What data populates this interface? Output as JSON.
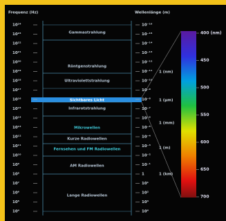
{
  "header": {
    "frequency_title": "Frequenz (Hz)",
    "wavelength_title": "Wellenlänge (m)"
  },
  "frequency_ticks": [
    "10²⁴",
    "10²³",
    "10²²",
    "10²¹",
    "10²⁰",
    "10¹⁹",
    "10¹⁸",
    "10¹⁷",
    "10¹⁶",
    "10¹⁵",
    "10¹⁴",
    "10¹³",
    "10¹²",
    "10¹¹",
    "10¹⁰",
    "10⁹",
    "10⁸",
    "10⁷",
    "10⁶",
    "10⁵",
    "10⁴"
  ],
  "wavelength_ticks": [
    "10⁻¹⁶",
    "10⁻¹⁵",
    "10⁻¹⁴",
    "10⁻¹³",
    "10⁻¹²",
    "10⁻¹¹",
    "10⁻¹⁰",
    "10⁻⁹",
    "10⁻⁸",
    "10⁻⁷",
    "10⁻⁶",
    "10⁻⁵",
    "10⁻⁴",
    "10⁻³",
    "10⁻²",
    "10⁻¹",
    "1",
    "10¹",
    "10²",
    "10³",
    "10⁴"
  ],
  "bands": [
    "Gammastrahlung",
    "Röntgenstrahlung",
    "Ultraviolettstrahlung",
    "Sichtbares Licht",
    "Infrarotstrahlung",
    "Mikrowellen",
    "Kurze Radiowellen",
    "Fernsehen und FM Radiowellen",
    "AM Radiowellen",
    "Lange Radiowellen"
  ],
  "units": [
    "1 (nm)",
    "1 (µm)",
    "1 (mm)",
    "1 (m)",
    "1 (km)"
  ],
  "color_scale": [
    "400 (nm)",
    "450",
    "500",
    "550",
    "600",
    "650",
    "700"
  ]
}
